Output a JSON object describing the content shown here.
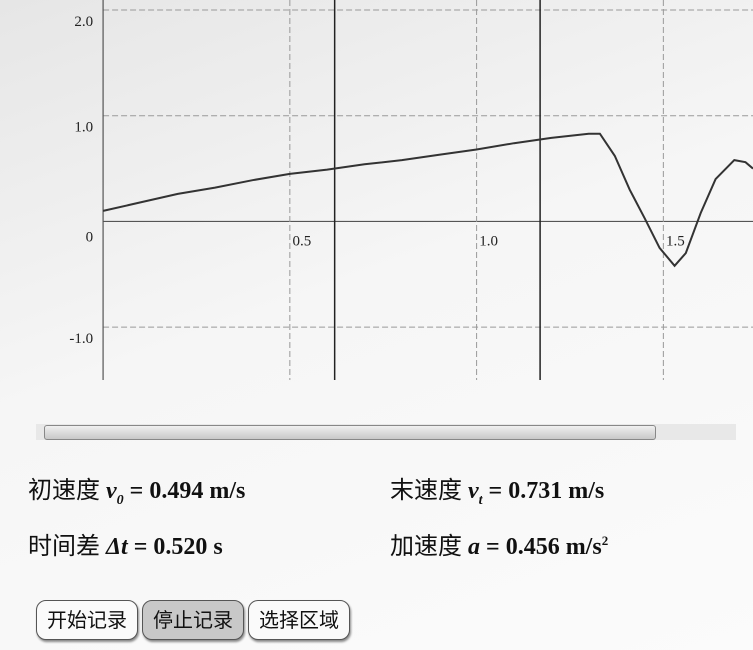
{
  "chart_data": {
    "type": "line",
    "x": [
      0,
      0.1,
      0.2,
      0.3,
      0.4,
      0.5,
      0.6,
      0.7,
      0.8,
      0.9,
      1.0,
      1.1,
      1.2,
      1.3,
      1.33,
      1.37,
      1.41,
      1.45,
      1.49,
      1.53,
      1.56,
      1.6,
      1.64,
      1.69,
      1.72,
      1.74
    ],
    "series": [
      {
        "color": "#333333",
        "values": [
          0.1,
          0.18,
          0.26,
          0.32,
          0.39,
          0.45,
          0.49,
          0.54,
          0.58,
          0.63,
          0.68,
          0.74,
          0.79,
          0.83,
          0.83,
          0.62,
          0.3,
          0.03,
          -0.25,
          -0.42,
          -0.3,
          0.08,
          0.4,
          0.58,
          0.56,
          0.5
        ]
      }
    ],
    "xlim": [
      -0.02,
      1.74
    ],
    "ylim": [
      -1.5,
      2.0
    ],
    "xticks": [
      0,
      0.5,
      {
        "value": 1,
        "label": "1.0"
      },
      1.5
    ],
    "yticks": [
      {
        "value": 2,
        "label": "2.0"
      },
      {
        "value": 1,
        "label": "1.0"
      },
      0,
      {
        "value": -1,
        "label": "-1.0"
      }
    ],
    "x_markers": [
      0.62,
      1.17
    ],
    "grid": true
  },
  "equals_sign": "=",
  "readouts": [
    {
      "label": "初速度",
      "symbol": "v",
      "sub": "0",
      "value": "0.494",
      "unit": "m/s"
    },
    {
      "label": "末速度",
      "symbol": "v",
      "sub": "t",
      "value": "0.731",
      "unit": "m/s"
    },
    {
      "label": "时间差",
      "symbol": "Δt",
      "value": "0.520",
      "unit": "s"
    },
    {
      "label": "加速度",
      "symbol": "a",
      "value": "0.456",
      "unit": "m/s",
      "sup": "2"
    }
  ],
  "buttons": [
    "开始记录",
    "停止记录",
    "选择区域"
  ]
}
